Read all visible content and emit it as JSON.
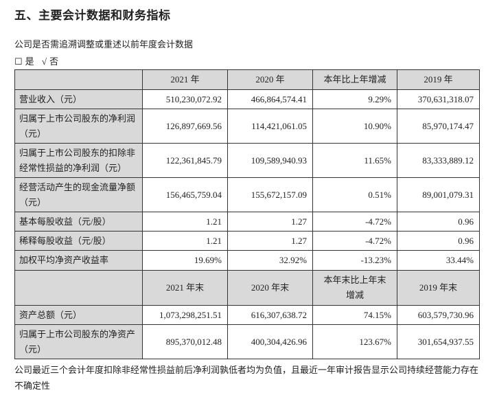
{
  "title": "五、主要会计数据和财务指标",
  "question": "公司是否需追溯调整或重述以前年度会计数据",
  "options": {
    "yes_box": "☐",
    "yes": "是",
    "no_check": "√",
    "no": "否"
  },
  "header1": [
    "",
    "2021 年",
    "2020 年",
    "本年比上年增减",
    "2019 年"
  ],
  "rows1": [
    [
      "营业收入（元）",
      "510,230,072.92",
      "466,864,574.41",
      "9.29%",
      "370,631,318.07"
    ],
    [
      "归属于上市公司股东的净利润（元）",
      "126,897,669.56",
      "114,421,061.05",
      "10.90%",
      "85,970,174.47"
    ],
    [
      "归属于上市公司股东的扣除非经常性损益的净利润（元）",
      "122,361,845.79",
      "109,589,940.93",
      "11.65%",
      "83,333,889.12"
    ],
    [
      "经营活动产生的现金流量净额（元）",
      "156,465,759.04",
      "155,672,157.09",
      "0.51%",
      "89,001,079.31"
    ],
    [
      "基本每股收益（元/股）",
      "1.21",
      "1.27",
      "-4.72%",
      "0.96"
    ],
    [
      "稀释每股收益（元/股）",
      "1.21",
      "1.27",
      "-4.72%",
      "0.96"
    ],
    [
      "加权平均净资产收益率",
      "19.69%",
      "32.92%",
      "-13.23%",
      "33.44%"
    ]
  ],
  "header2": [
    "",
    "2021 年末",
    "2020 年末",
    "本年末比上年末增减",
    "2019 年末"
  ],
  "rows2": [
    [
      "资产总额（元）",
      "1,073,298,251.51",
      "616,307,638.72",
      "74.15%",
      "603,579,730.96"
    ],
    [
      "归属于上市公司股东的净资产（元）",
      "895,370,012.48",
      "400,304,426.96",
      "123.67%",
      "301,654,937.55"
    ]
  ],
  "footnote": "公司最近三个会计年度扣除非经常性损益前后净利润孰低者均为负值，且最近一年审计报告显示公司持续经营能力存在不确定性"
}
